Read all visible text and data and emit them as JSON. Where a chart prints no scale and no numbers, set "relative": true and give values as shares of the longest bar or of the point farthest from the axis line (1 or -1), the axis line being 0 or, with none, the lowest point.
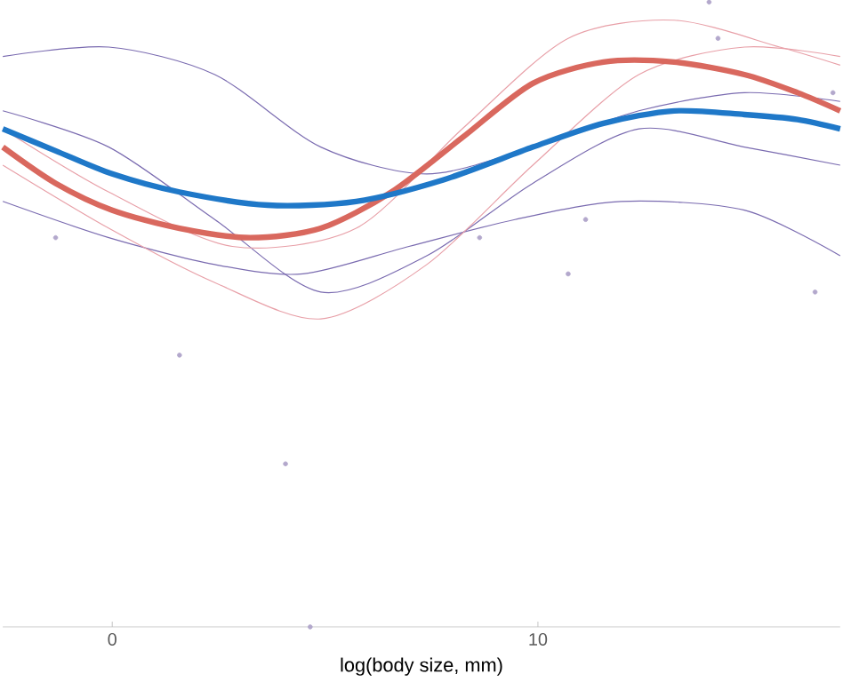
{
  "chart_data": {
    "type": "line",
    "relative": true,
    "xlabel": "log(body size, mm)",
    "xlim": [
      -2.57,
      17.1
    ],
    "xticks": [
      0,
      10
    ],
    "tick_labels": "x",
    "grid": false,
    "marker": "none",
    "series": [
      {
        "type": "scatter",
        "color": "#b3a8cc",
        "x": [
          4.65,
          16.93,
          14.02,
          14.23,
          4.07,
          8.63,
          10.71,
          -1.33,
          1.58,
          16.51,
          11.12
        ],
        "values": [
          0.0,
          0.855,
          1.0,
          0.942,
          0.261,
          0.623,
          0.565,
          0.623,
          0.435,
          0.536,
          0.652
        ]
      },
      {
        "color": "#7a6bb0",
        "x": [
          -2.57,
          -0.08,
          2.41,
          4.9,
          7.39,
          9.88,
          12.37,
          14.85,
          17.1
        ],
        "values": [
          0.913,
          0.928,
          0.884,
          0.768,
          0.725,
          0.768,
          0.826,
          0.855,
          0.841
        ]
      },
      {
        "color": "#7a6bb0",
        "x": [
          -2.57,
          -0.08,
          2.41,
          4.9,
          7.39,
          9.88,
          12.37,
          14.85,
          17.1
        ],
        "values": [
          0.826,
          0.768,
          0.652,
          0.536,
          0.594,
          0.71,
          0.797,
          0.768,
          0.739
        ]
      },
      {
        "color": "#7a6bb0",
        "x": [
          -2.57,
          -0.08,
          2.41,
          4.48,
          6.97,
          9.46,
          11.95,
          14.85,
          17.1
        ],
        "values": [
          0.681,
          0.623,
          0.58,
          0.565,
          0.609,
          0.652,
          0.681,
          0.667,
          0.594
        ]
      },
      {
        "color": "#e8a0a8",
        "x": [
          -2.57,
          -0.08,
          2.41,
          4.9,
          7.39,
          9.88,
          12.37,
          14.85,
          17.1
        ],
        "values": [
          0.739,
          0.638,
          0.551,
          0.493,
          0.58,
          0.739,
          0.884,
          0.928,
          0.913
        ]
      },
      {
        "color": "#e8a0a8",
        "x": [
          -2.57,
          -0.08,
          2.82,
          5.73,
          8.22,
          10.71,
          13.2,
          15.68,
          17.1
        ],
        "values": [
          0.797,
          0.696,
          0.609,
          0.638,
          0.797,
          0.942,
          0.971,
          0.928,
          0.899
        ]
      },
      {
        "color": "#d9685e",
        "x": [
          -2.57,
          -1.33,
          0,
          1.58,
          3.24,
          4.9,
          6.56,
          8.22,
          9.88,
          11.54,
          13.2,
          14.85,
          16.1,
          17.1
        ],
        "values": [
          0.768,
          0.71,
          0.667,
          0.638,
          0.623,
          0.638,
          0.696,
          0.783,
          0.87,
          0.904,
          0.904,
          0.884,
          0.855,
          0.826
        ]
      },
      {
        "color": "#1f78c8",
        "x": [
          -2.57,
          -1.33,
          0,
          1.58,
          3.65,
          5.73,
          7.8,
          9.88,
          11.54,
          13.2,
          14.85,
          16.1,
          17.1
        ],
        "values": [
          0.797,
          0.762,
          0.725,
          0.696,
          0.675,
          0.681,
          0.716,
          0.768,
          0.806,
          0.826,
          0.82,
          0.812,
          0.797
        ]
      }
    ]
  }
}
